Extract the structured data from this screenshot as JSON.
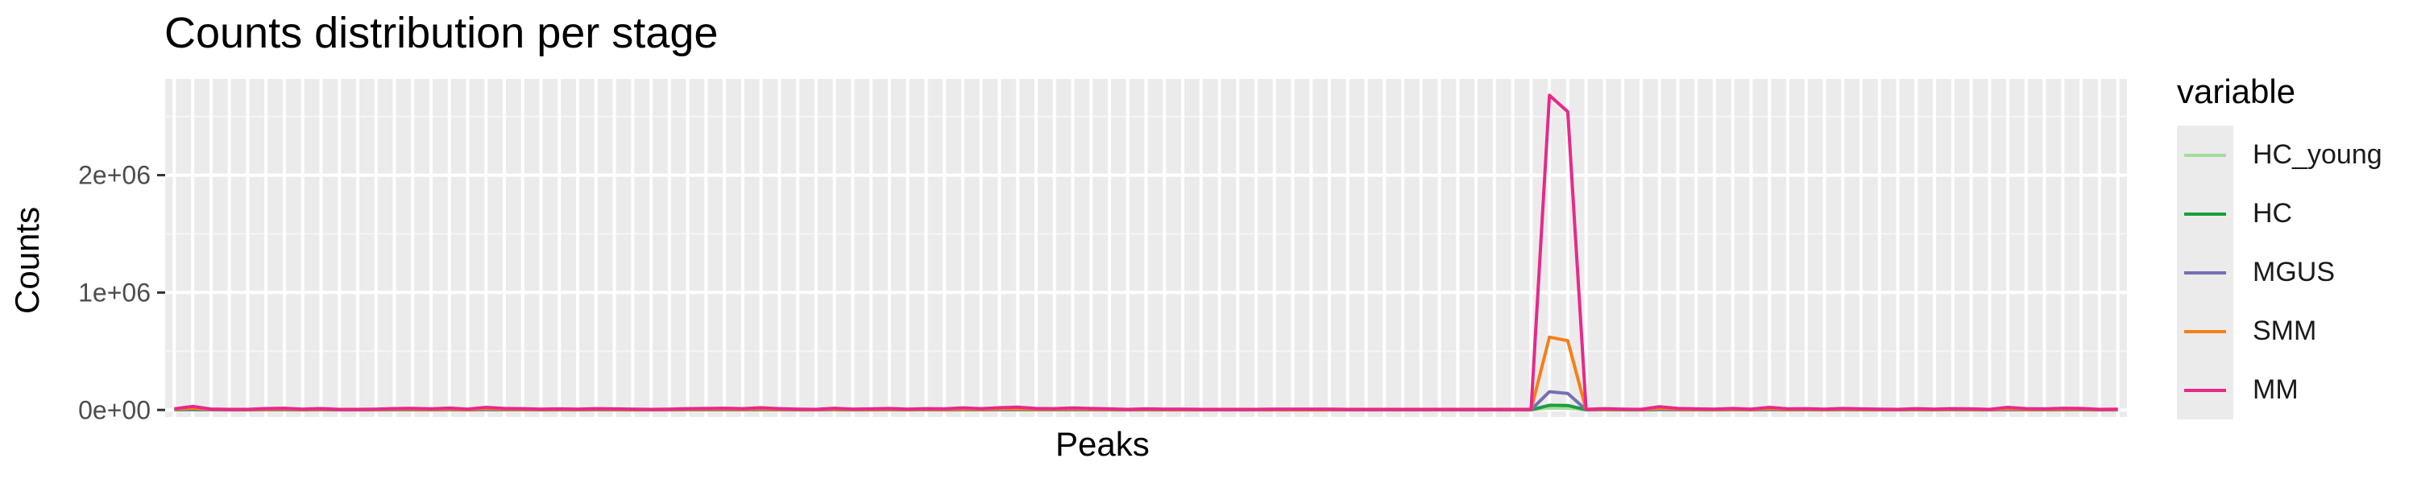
{
  "chart_data": {
    "type": "line",
    "title": "Counts distribution per stage",
    "xlabel": "Peaks",
    "ylabel": "Counts",
    "ylim": [
      -60000,
      2820000
    ],
    "yticks": [
      0,
      1000000,
      2000000
    ],
    "ytick_labels": [
      "0e+00",
      "1e+06",
      "2e+06"
    ],
    "legend_title": "variable",
    "legend_position": "right",
    "grid": true,
    "x": [
      1,
      2,
      3,
      4,
      5,
      6,
      7,
      8,
      9,
      10,
      11,
      12,
      13,
      14,
      15,
      16,
      17,
      18,
      19,
      20,
      21,
      22,
      23,
      24,
      25,
      26,
      27,
      28,
      29,
      30,
      31,
      32,
      33,
      34,
      35,
      36,
      37,
      38,
      39,
      40,
      41,
      42,
      43,
      44,
      45,
      46,
      47,
      48,
      49,
      50,
      51,
      52,
      53,
      54,
      55,
      56,
      57,
      58,
      59,
      60,
      61,
      62,
      63,
      64,
      65,
      66,
      67,
      68,
      69,
      70,
      71,
      72,
      73,
      74,
      75,
      76,
      77,
      78,
      79,
      80,
      81,
      82,
      83,
      84,
      85,
      86,
      87,
      88,
      89,
      90,
      91,
      92,
      93,
      94,
      95,
      96,
      97,
      98,
      99,
      100,
      101,
      102,
      103,
      104,
      105,
      106,
      107
    ],
    "series": [
      {
        "name": "HC_young",
        "color": "#a6dba0",
        "values": [
          1000,
          2000,
          1000,
          500,
          500,
          800,
          1000,
          600,
          900,
          500,
          500,
          600,
          900,
          1000,
          700,
          1100,
          600,
          1400,
          900,
          800,
          600,
          700,
          600,
          800,
          700,
          600,
          500,
          600,
          800,
          900,
          1000,
          800,
          1200,
          800,
          600,
          500,
          1000,
          600,
          700,
          900,
          600,
          800,
          700,
          1100,
          800,
          1200,
          1200,
          800,
          800,
          1100,
          900,
          700,
          500,
          700,
          600,
          600,
          500,
          500,
          500,
          500,
          600,
          600,
          600,
          600,
          500,
          500,
          500,
          500,
          500,
          500,
          500,
          500,
          500,
          500,
          500,
          16000,
          15000,
          500,
          800,
          600,
          500,
          1800,
          900,
          700,
          600,
          900,
          600,
          1400,
          700,
          800,
          600,
          900,
          700,
          600,
          500,
          800,
          600,
          800,
          700,
          500,
          1300,
          800,
          700,
          1000,
          900,
          500,
          600
        ]
      },
      {
        "name": "HC",
        "color": "#1b9e3e",
        "values": [
          2000,
          4000,
          1500,
          800,
          800,
          1500,
          2000,
          1000,
          1600,
          800,
          800,
          1000,
          1600,
          1800,
          1200,
          2000,
          1000,
          2500,
          1600,
          1400,
          1000,
          1200,
          1000,
          1400,
          1200,
          1000,
          800,
          1000,
          1400,
          1600,
          1800,
          1400,
          2200,
          1400,
          1000,
          800,
          1800,
          1000,
          1200,
          1600,
          1000,
          1400,
          1200,
          2000,
          1400,
          2200,
          2200,
          1400,
          1400,
          2000,
          1600,
          1200,
          800,
          1200,
          1000,
          1000,
          800,
          800,
          800,
          800,
          1000,
          1000,
          1000,
          1000,
          800,
          800,
          800,
          800,
          800,
          800,
          800,
          800,
          800,
          800,
          800,
          40000,
          38000,
          800,
          1400,
          1000,
          800,
          3200,
          1600,
          1200,
          1000,
          1600,
          1000,
          2500,
          1200,
          1400,
          1000,
          1600,
          1200,
          1000,
          800,
          1400,
          1000,
          1400,
          1200,
          800,
          2300,
          1400,
          1200,
          1800,
          1600,
          800,
          1000
        ]
      },
      {
        "name": "MGUS",
        "color": "#7570b3",
        "values": [
          3000,
          8000,
          2500,
          1500,
          1500,
          3000,
          4000,
          2000,
          3200,
          1500,
          1500,
          2000,
          3200,
          3600,
          2400,
          4000,
          2000,
          5000,
          3200,
          2800,
          2000,
          2400,
          2000,
          2800,
          2400,
          2000,
          1500,
          2000,
          2800,
          3200,
          3600,
          2800,
          4400,
          2800,
          2000,
          1500,
          3600,
          2000,
          2400,
          3200,
          2000,
          2800,
          2400,
          4000,
          2800,
          4400,
          4400,
          2800,
          2800,
          4000,
          3200,
          2400,
          1500,
          2400,
          2000,
          2000,
          1500,
          1500,
          1500,
          1500,
          2000,
          2000,
          2000,
          2000,
          1500,
          1500,
          1500,
          1500,
          1500,
          1500,
          1500,
          1500,
          1500,
          1500,
          1500,
          155000,
          140000,
          1500,
          2800,
          2000,
          1500,
          6400,
          3200,
          2400,
          2000,
          3200,
          2000,
          5000,
          2400,
          2800,
          2000,
          3200,
          2400,
          2000,
          1500,
          2800,
          2000,
          2800,
          2400,
          1500,
          4600,
          2800,
          2400,
          3600,
          3200,
          1500,
          2000
        ]
      },
      {
        "name": "SMM",
        "color": "#f57f17",
        "values": [
          6000,
          15000,
          5000,
          3000,
          3000,
          6000,
          8000,
          4000,
          6400,
          3000,
          3000,
          4000,
          6400,
          7200,
          4800,
          8000,
          4000,
          10000,
          6400,
          5600,
          4000,
          4800,
          4000,
          5600,
          4800,
          4000,
          3000,
          4000,
          5600,
          6400,
          7200,
          5600,
          8800,
          5600,
          4000,
          3000,
          7200,
          4000,
          4800,
          6400,
          4000,
          5600,
          4800,
          8000,
          5600,
          8800,
          8800,
          5600,
          5600,
          8000,
          6400,
          4800,
          3000,
          4800,
          4000,
          4000,
          3000,
          3000,
          3000,
          3000,
          4000,
          4000,
          4000,
          4000,
          3000,
          3000,
          3000,
          3000,
          3000,
          3000,
          3000,
          3000,
          3000,
          3000,
          3000,
          620000,
          590000,
          3000,
          5600,
          4000,
          3000,
          12800,
          6400,
          4800,
          4000,
          6400,
          4000,
          10000,
          4800,
          5600,
          4000,
          6400,
          4800,
          4000,
          3000,
          5600,
          4000,
          5600,
          4800,
          3000,
          9200,
          5600,
          4800,
          7200,
          6400,
          3000,
          4000
        ]
      },
      {
        "name": "MM",
        "color": "#e7298a",
        "values": [
          10000,
          30000,
          8000,
          5000,
          5000,
          12000,
          15000,
          7000,
          12000,
          5000,
          5000,
          7000,
          12000,
          14000,
          9000,
          16000,
          7000,
          22000,
          13000,
          11000,
          7000,
          9000,
          7000,
          11000,
          9000,
          7000,
          5000,
          7000,
          11000,
          13000,
          15000,
          11000,
          19000,
          11000,
          7000,
          5000,
          15000,
          7000,
          9000,
          13000,
          7000,
          11000,
          9000,
          18000,
          11000,
          19000,
          24000,
          13000,
          11000,
          17000,
          13000,
          9000,
          5000,
          9000,
          7000,
          7000,
          5000,
          5000,
          5000,
          5000,
          7000,
          7000,
          7000,
          7000,
          5000,
          5000,
          5000,
          5000,
          5000,
          5000,
          5000,
          5000,
          5000,
          5000,
          5000,
          2680000,
          2540000,
          5000,
          11000,
          7000,
          5000,
          28000,
          13000,
          9000,
          7000,
          13000,
          7000,
          22000,
          9000,
          11000,
          7000,
          13000,
          9000,
          7000,
          5000,
          11000,
          7000,
          11000,
          9000,
          5000,
          22000,
          11000,
          9000,
          15000,
          13000,
          5000,
          7000
        ]
      }
    ]
  }
}
